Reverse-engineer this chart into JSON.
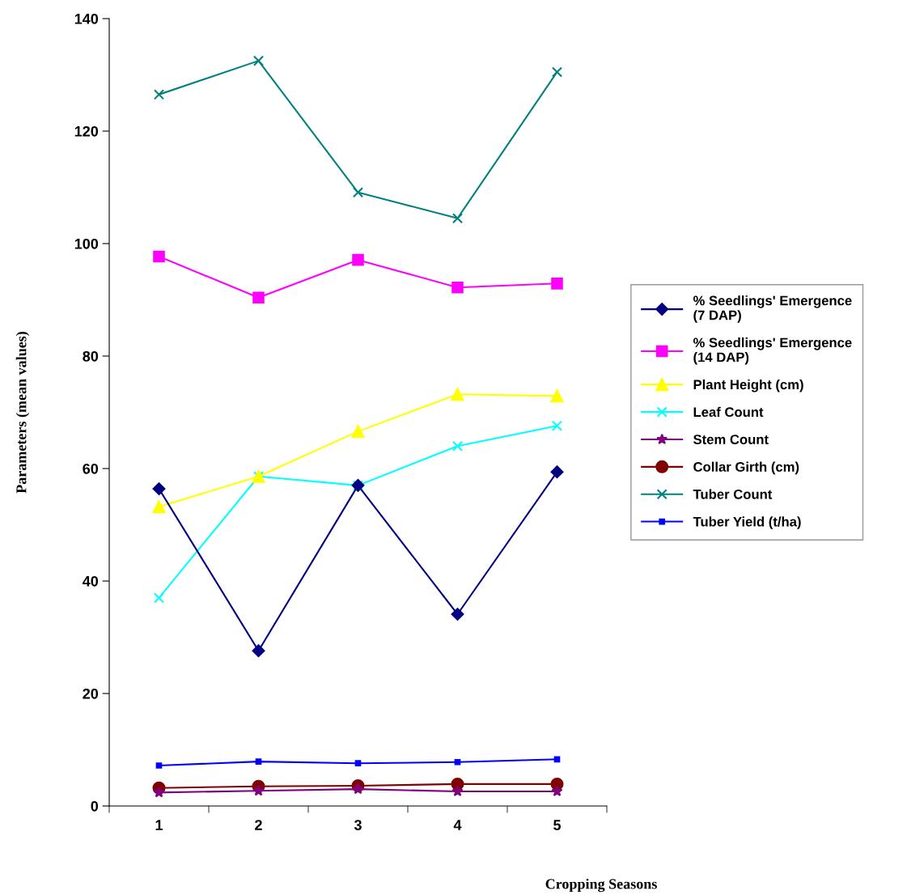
{
  "chart_data": {
    "type": "line",
    "xlabel": "Cropping Seasons",
    "ylabel": "Parameters (mean values)",
    "categories": [
      "1",
      "2",
      "3",
      "4",
      "5"
    ],
    "ylim": [
      0,
      140
    ],
    "yticks": [
      0,
      20,
      40,
      60,
      80,
      100,
      120,
      140
    ],
    "grid": false,
    "legend": "right",
    "series": [
      {
        "name": "% Seedlings' Emergence (7 DAP)",
        "color": "#000080",
        "marker": "diamond",
        "values": [
          56.4,
          27.6,
          57.0,
          34.1,
          59.4
        ]
      },
      {
        "name": "% Seedlings' Emergence (14 DAP)",
        "color": "#ff00ff",
        "marker": "square",
        "values": [
          97.7,
          90.4,
          97.1,
          92.2,
          92.9
        ]
      },
      {
        "name": "Plant Height (cm)",
        "color": "#ffff00",
        "marker": "triangle",
        "values": [
          53.2,
          58.6,
          66.6,
          73.2,
          72.9
        ]
      },
      {
        "name": "Leaf Count",
        "color": "#00ffff",
        "marker": "cross",
        "values": [
          37.0,
          58.6,
          57.0,
          64.0,
          67.6
        ]
      },
      {
        "name": "Stem Count",
        "color": "#800080",
        "marker": "star",
        "values": [
          2.4,
          2.7,
          3.0,
          2.6,
          2.6
        ]
      },
      {
        "name": "Collar Girth (cm)",
        "color": "#800000",
        "marker": "circle",
        "values": [
          3.2,
          3.5,
          3.6,
          3.9,
          3.9
        ]
      },
      {
        "name": "Tuber Count",
        "color": "#008080",
        "marker": "cross",
        "values": [
          126.5,
          132.5,
          109.1,
          104.5,
          130.5
        ]
      },
      {
        "name": "Tuber Yield (t/ha)",
        "color": "#0000ff",
        "marker": "square",
        "values": [
          7.2,
          7.9,
          7.6,
          7.8,
          8.3
        ]
      }
    ]
  }
}
